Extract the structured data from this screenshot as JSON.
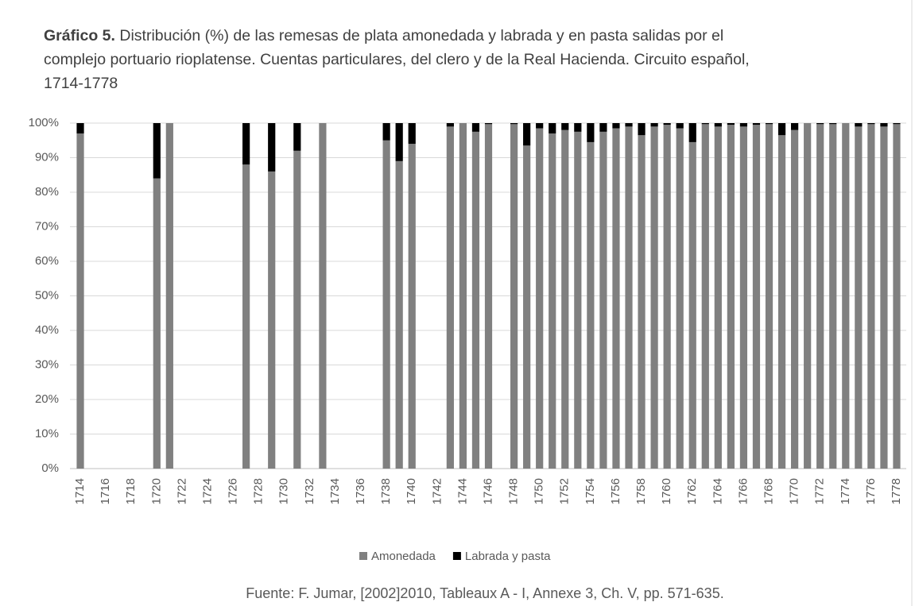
{
  "chart_data": {
    "type": "stacked_bar",
    "title_prefix": "Gráfico 5.",
    "title": "Distribución (%) de las remesas de plata amonedada y labrada y en pasta salidas por el complejo portuario rioplatense. Cuentas particulares, del clero y de la Real Hacienda. Circuito español, 1714-1778",
    "source": "Fuente: F. Jumar, [2002]2010, Tableaux A - I, Annexe 3, Ch. V, pp. 571-635.",
    "categories": [
      "1714",
      null,
      "1716",
      null,
      "1718",
      null,
      "1720",
      null,
      "1722",
      null,
      "1724",
      null,
      "1726",
      null,
      "1728",
      null,
      "1730",
      null,
      "1732",
      null,
      "1734",
      null,
      "1736",
      null,
      "1738",
      null,
      "1740",
      null,
      "1742",
      null,
      "1744",
      null,
      "1746",
      null,
      "1748",
      null,
      "1750",
      null,
      "1752",
      null,
      "1754",
      null,
      "1756",
      null,
      "1758",
      null,
      "1760",
      null,
      "1762",
      null,
      "1764",
      null,
      "1766",
      null,
      "1768",
      null,
      "1770",
      null,
      "1772",
      null,
      "1774",
      null,
      "1776",
      null,
      "1778"
    ],
    "series": [
      {
        "name": "Amonedada",
        "color": "#808080",
        "values": [
          97,
          null,
          null,
          null,
          null,
          null,
          84,
          100,
          null,
          null,
          null,
          null,
          null,
          88,
          null,
          86,
          null,
          92,
          null,
          100,
          null,
          null,
          null,
          null,
          95,
          89,
          94,
          null,
          null,
          99,
          100,
          97.5,
          99.7,
          null,
          99.7,
          93.5,
          98.5,
          97,
          98,
          97.5,
          94.5,
          97.5,
          98.5,
          99,
          96.5,
          99,
          99.5,
          98.5,
          94.5,
          99.7,
          99,
          99.5,
          99,
          99.5,
          99.7,
          96.5,
          98,
          100,
          99.7,
          99.7,
          100,
          99,
          99.7,
          99,
          99.7
        ]
      },
      {
        "name": "Labrada y pasta",
        "color": "#000000",
        "values": [
          3,
          null,
          null,
          null,
          null,
          null,
          16,
          0,
          null,
          null,
          null,
          null,
          null,
          12,
          null,
          14,
          null,
          8,
          null,
          0,
          null,
          null,
          null,
          null,
          5,
          11,
          6,
          null,
          null,
          1,
          0,
          2.5,
          0.3,
          null,
          0.3,
          6.5,
          1.5,
          3,
          2,
          2.5,
          5.5,
          2.5,
          1.5,
          1,
          3.5,
          1,
          0.5,
          1.5,
          5.5,
          0.3,
          1,
          0.5,
          1,
          0.5,
          0.3,
          3.5,
          2,
          0,
          0.3,
          0.3,
          0,
          1,
          0.3,
          1,
          0.3
        ]
      }
    ],
    "ylim": [
      0,
      100
    ],
    "yticks": [
      {
        "value": 0,
        "label": "0%"
      },
      {
        "value": 10,
        "label": "10%"
      },
      {
        "value": 20,
        "label": "20%"
      },
      {
        "value": 30,
        "label": "30%"
      },
      {
        "value": 40,
        "label": "40%"
      },
      {
        "value": 50,
        "label": "50%"
      },
      {
        "value": 60,
        "label": "60%"
      },
      {
        "value": 70,
        "label": "70%"
      },
      {
        "value": 80,
        "label": "80%"
      },
      {
        "value": 90,
        "label": "90%"
      },
      {
        "value": 100,
        "label": "100%"
      }
    ],
    "grid": true,
    "legend": "bottom"
  }
}
